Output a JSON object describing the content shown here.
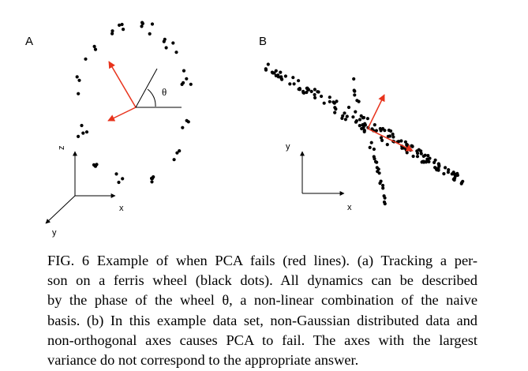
{
  "panels": [
    {
      "label": "A",
      "axes": {
        "z": "z",
        "x": "x",
        "y": "y"
      },
      "angle": "θ"
    },
    {
      "label": "B",
      "axes": {
        "y": "y",
        "x": "x"
      }
    }
  ],
  "caption_lines": [
    "FIG. 6 Example of when PCA fails (red lines). (a) Tracking a per-",
    "son on a ferris wheel (black dots). All dynamics can be described",
    "by the phase of the wheel θ, a non-linear combination of the naive",
    "basis. (b) In this example data set, non-Gaussian distributed data and",
    "non-orthogonal axes causes PCA to fail. The axes with the largest",
    "variance do not correspond to the appropriate answer."
  ],
  "colors": {
    "pca_axes": "#e8331c",
    "data": "#000000"
  }
}
